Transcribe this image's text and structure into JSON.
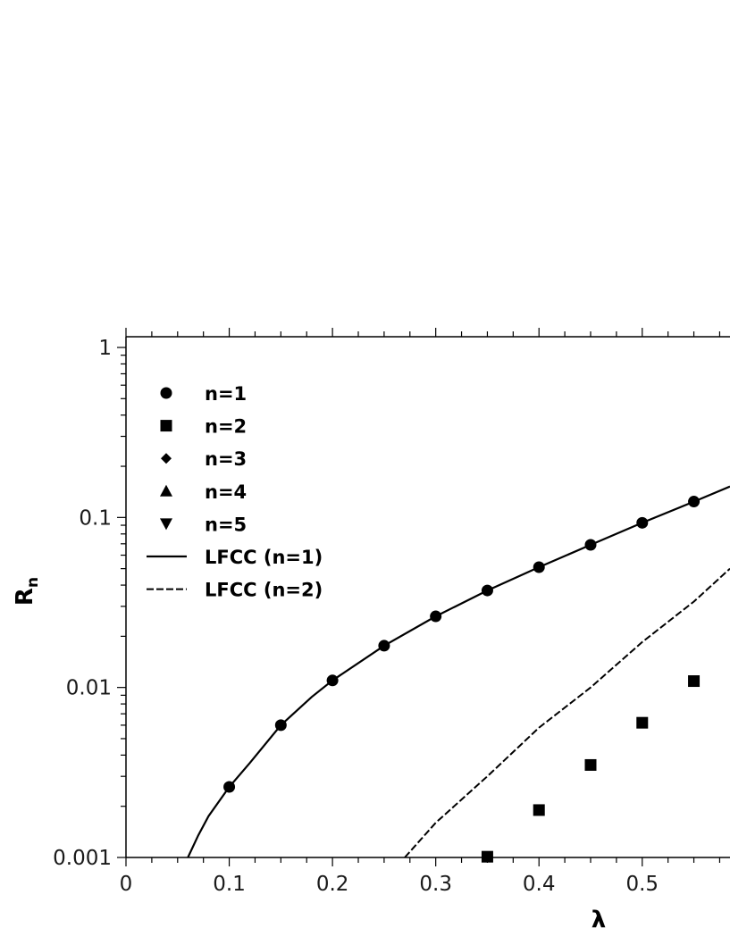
{
  "chart_data": {
    "type": "scatter",
    "xlabel": "λ",
    "ylabel": {
      "base": "R",
      "subscript": "n"
    },
    "xlim": [
      0,
      0.585
    ],
    "ylim": [
      0.001,
      1
    ],
    "yscale": "log",
    "grid": false,
    "legend_position": "top-left",
    "x_ticks": [
      "0",
      "0.1",
      "0.2",
      "0.3",
      "0.4",
      "0.5"
    ],
    "y_ticks": [
      "0.001",
      "0.01",
      "0.1",
      "1"
    ],
    "series": [
      {
        "name": "n=1",
        "marker": "circle",
        "x": [
          0.1,
          0.15,
          0.2,
          0.25,
          0.3,
          0.35,
          0.4,
          0.45,
          0.5,
          0.55
        ],
        "y": [
          0.0026,
          0.006,
          0.011,
          0.0176,
          0.0262,
          0.0372,
          0.051,
          0.069,
          0.093,
          0.124
        ]
      },
      {
        "name": "n=2",
        "marker": "square",
        "x": [
          0.35,
          0.4,
          0.45,
          0.5,
          0.55
        ],
        "y": [
          0.00101,
          0.0019,
          0.0035,
          0.0062,
          0.0109
        ]
      },
      {
        "name": "n=3",
        "marker": "diamond",
        "x": [],
        "y": []
      },
      {
        "name": "n=4",
        "marker": "triangle-up",
        "x": [],
        "y": []
      },
      {
        "name": "n=5",
        "marker": "triangle-down",
        "x": [],
        "y": []
      },
      {
        "name": "LFCC (n=1)",
        "line": "solid",
        "x": [
          0.06,
          0.07,
          0.08,
          0.1,
          0.12,
          0.15,
          0.18,
          0.2,
          0.25,
          0.3,
          0.35,
          0.4,
          0.45,
          0.5,
          0.55,
          0.585
        ],
        "y": [
          0.001,
          0.00135,
          0.00175,
          0.0026,
          0.0036,
          0.006,
          0.0088,
          0.011,
          0.0176,
          0.0262,
          0.0372,
          0.051,
          0.069,
          0.093,
          0.124,
          0.152
        ]
      },
      {
        "name": "LFCC (n=2)",
        "line": "dashed",
        "x": [
          0.27,
          0.3,
          0.35,
          0.4,
          0.45,
          0.5,
          0.55,
          0.585
        ],
        "y": [
          0.001,
          0.0016,
          0.003,
          0.0058,
          0.01,
          0.0185,
          0.032,
          0.05
        ]
      }
    ]
  }
}
